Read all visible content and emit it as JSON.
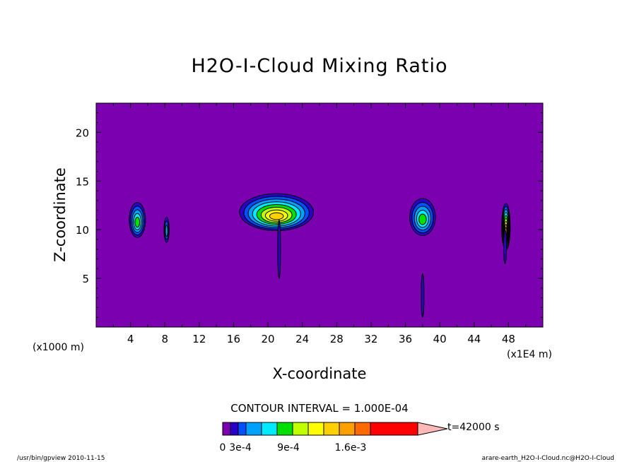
{
  "chart_data": {
    "type": "heatmap",
    "title": "H2O-I-Cloud Mixing Ratio",
    "xlabel": "X-coordinate",
    "ylabel": "Z-coordinate",
    "x_unit_left": "(x1000 m)",
    "x_unit_right": "(x1E4 m)",
    "xlim": [
      0,
      52
    ],
    "ylim": [
      0,
      23
    ],
    "xticks": [
      "4",
      "8",
      "12",
      "16",
      "20",
      "24",
      "28",
      "32",
      "36",
      "40",
      "44",
      "48"
    ],
    "yticks": [
      "5",
      "10",
      "15",
      "20"
    ],
    "contour_interval_text": "CONTOUR INTERVAL = 1.000E-04",
    "time_label": "t=42000 s",
    "colorbar_labels": [
      "0",
      "3e-4",
      "9e-4",
      "1.6e-3"
    ],
    "colorbar_colors": [
      "#7a00b0",
      "#2a00c8",
      "#0050ff",
      "#00a0ff",
      "#00eaff",
      "#00e000",
      "#c0ff00",
      "#ffff00",
      "#ffd000",
      "#ffa000",
      "#ff6a00",
      "#ff0000",
      "#ff7a7a",
      "#ffb8b8"
    ],
    "clouds": [
      {
        "x": 4.8,
        "z": 11.0,
        "width": 1.9,
        "height": 3.6,
        "max_level": 5
      },
      {
        "x": 8.2,
        "z": 10.0,
        "width": 0.6,
        "height": 2.6,
        "max_level": 3
      },
      {
        "x": 21.0,
        "z": 11.8,
        "width": 8.6,
        "height": 3.8,
        "max_level": 8
      },
      {
        "x": 38.0,
        "z": 11.3,
        "width": 3.0,
        "height": 3.8,
        "max_level": 5
      },
      {
        "x": 47.7,
        "z": 10.3,
        "width": 1.0,
        "height": 4.8,
        "max_level": 9
      }
    ]
  },
  "footer_left": "/usr/bin/gpview   2010-11-15",
  "footer_right": "arare-earth_H2O-I-Cloud.nc@H2O-I-Cloud"
}
